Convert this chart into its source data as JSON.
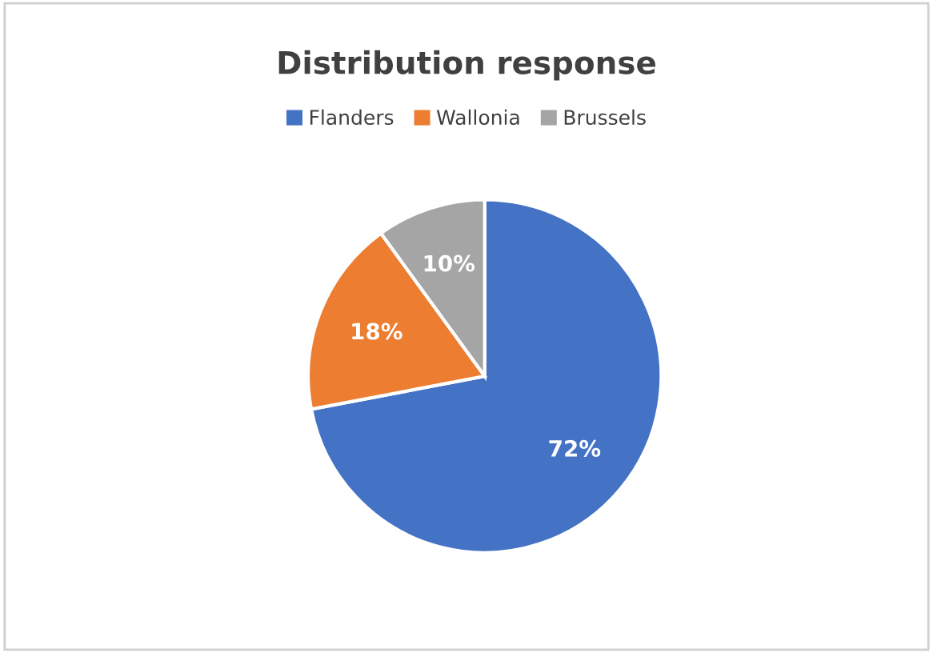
{
  "chart_data": {
    "type": "pie",
    "title": "Distribution response",
    "categories": [
      "Flanders",
      "Wallonia",
      "Brussels"
    ],
    "values": [
      72,
      18,
      10
    ],
    "colors": [
      "#4472c4",
      "#ed7d31",
      "#a5a5a5"
    ],
    "value_labels": [
      "72%",
      "18%",
      "10%"
    ],
    "legend": "top"
  }
}
